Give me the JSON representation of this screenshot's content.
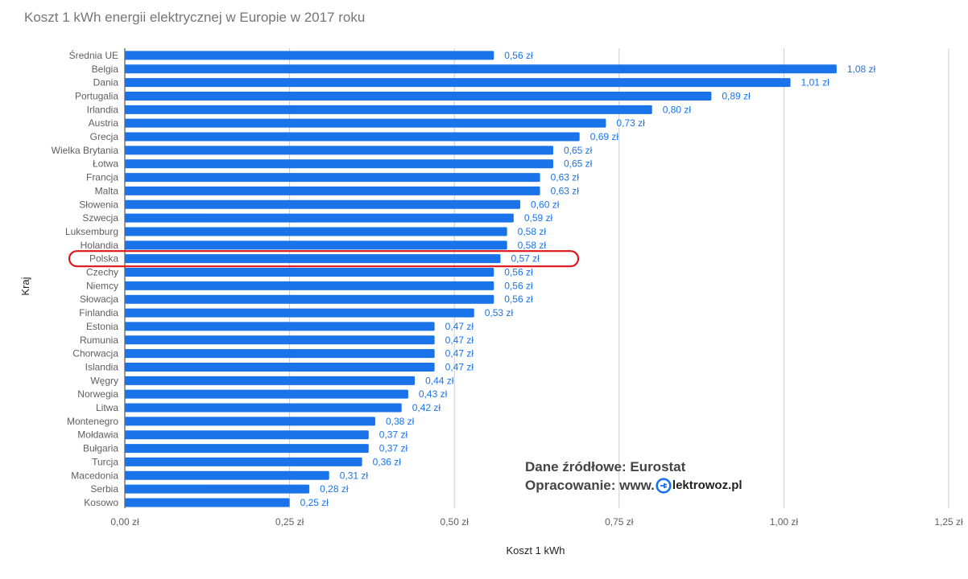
{
  "title": "Koszt 1 kWh energii elektrycznej w Europie w 2017 roku",
  "source": {
    "line1": "Dane źródłowe: Eurostat",
    "line2_prefix": "Opracowanie: www.",
    "brand": "lektrowoz.pl",
    "logo_icon": "electric-plug-logo-icon",
    "logo_color": "#1a73e8"
  },
  "chart_data": {
    "type": "bar",
    "orientation": "horizontal",
    "title": "Koszt 1 kWh energii elektrycznej w Europie w 2017 roku",
    "xlabel": "Koszt 1 kWh",
    "ylabel": "Kraj",
    "xlim": [
      0,
      1.25
    ],
    "x_ticks": [
      0,
      0.25,
      0.5,
      0.75,
      1.0,
      1.25
    ],
    "x_tick_labels": [
      "0,00 zł",
      "0,25 zł",
      "0,50 zł",
      "0,75 zł",
      "1,00 zł",
      "1,25 zł"
    ],
    "grid": true,
    "bar_color": "#1a73e8",
    "highlight_color": "#e0151a",
    "highlight_category": "Polska",
    "categories": [
      "Średnia UE",
      "Belgia",
      "Dania",
      "Portugalia",
      "Irlandia",
      "Austria",
      "Grecja",
      "Wielka Brytania",
      "Łotwa",
      "Francja",
      "Malta",
      "Słowenia",
      "Szwecja",
      "Luksemburg",
      "Holandia",
      "Polska",
      "Czechy",
      "Niemcy",
      "Słowacja",
      "Finlandia",
      "Estonia",
      "Rumunia",
      "Chorwacja",
      "Islandia",
      "Węgry",
      "Norwegia",
      "Litwa",
      "Montenegro",
      "Mołdawia",
      "Bułgaria",
      "Turcja",
      "Macedonia",
      "Serbia",
      "Kosowo"
    ],
    "values": [
      0.56,
      1.08,
      1.01,
      0.89,
      0.8,
      0.73,
      0.69,
      0.65,
      0.65,
      0.63,
      0.63,
      0.6,
      0.59,
      0.58,
      0.58,
      0.57,
      0.56,
      0.56,
      0.56,
      0.53,
      0.47,
      0.47,
      0.47,
      0.47,
      0.44,
      0.43,
      0.42,
      0.38,
      0.37,
      0.37,
      0.36,
      0.31,
      0.28,
      0.25
    ],
    "value_labels": [
      "0,56 zł",
      "1,08 zł",
      "1,01 zł",
      "0,89 zł",
      "0,80 zł",
      "0,73 zł",
      "0,69 zł",
      "0,65 zł",
      "0,65 zł",
      "0,63 zł",
      "0,63 zł",
      "0,60 zł",
      "0,59 zł",
      "0,58 zł",
      "0,58 zł",
      "0,57 zł",
      "0,56 zł",
      "0,56 zł",
      "0,56 zł",
      "0,53 zł",
      "0,47 zł",
      "0,47 zł",
      "0,47 zł",
      "0,47 zł",
      "0,44 zł",
      "0,43 zł",
      "0,42 zł",
      "0,38 zł",
      "0,37 zł",
      "0,37 zł",
      "0,36 zł",
      "0,31 zł",
      "0,28 zł",
      "0,25 zł"
    ]
  }
}
